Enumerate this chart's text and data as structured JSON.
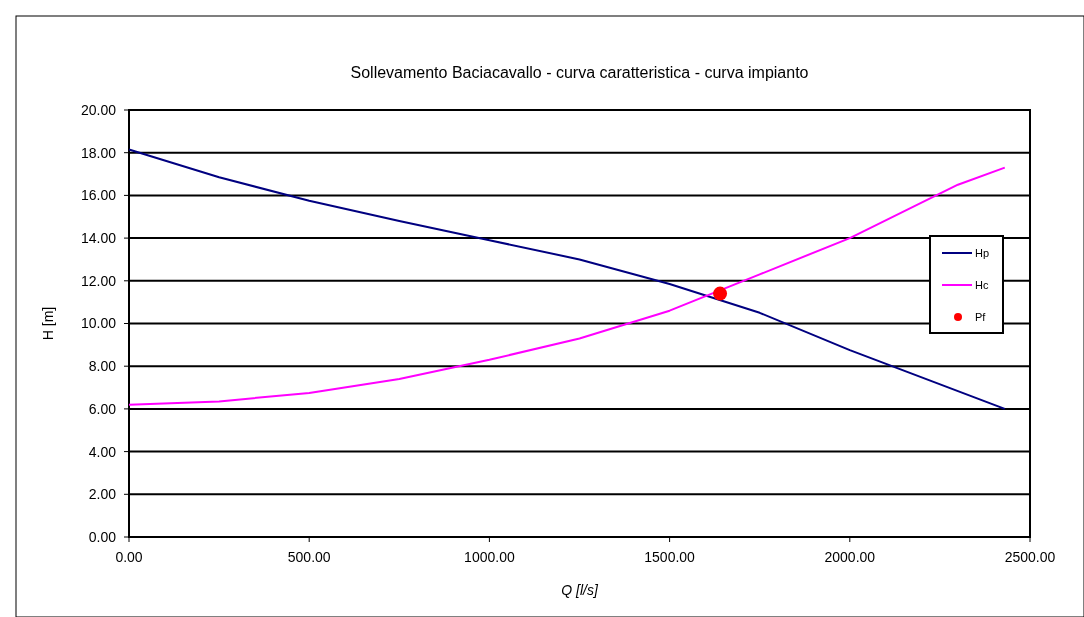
{
  "chart_data": {
    "type": "line",
    "title": "Sollevamento Baciacavallo - curva caratteristica - curva impianto",
    "xlabel": "Q [l/s]",
    "ylabel": "H [m]",
    "xlim": [
      0,
      2500
    ],
    "ylim": [
      0,
      20
    ],
    "xticks": [
      {
        "value": 0,
        "label": "0.00"
      },
      {
        "value": 500,
        "label": "500.00"
      },
      {
        "value": 1000,
        "label": "1000.00"
      },
      {
        "value": 1500,
        "label": "1500.00"
      },
      {
        "value": 2000,
        "label": "2000.00"
      },
      {
        "value": 2500,
        "label": "2500.00"
      }
    ],
    "yticks": [
      {
        "value": 0,
        "label": "0.00"
      },
      {
        "value": 2,
        "label": "2.00"
      },
      {
        "value": 4,
        "label": "4.00"
      },
      {
        "value": 6,
        "label": "6.00"
      },
      {
        "value": 8,
        "label": "8.00"
      },
      {
        "value": 10,
        "label": "10.00"
      },
      {
        "value": 12,
        "label": "12.00"
      },
      {
        "value": 14,
        "label": "14.00"
      },
      {
        "value": 16,
        "label": "16.00"
      },
      {
        "value": 18,
        "label": "18.00"
      },
      {
        "value": 20,
        "label": "20.00"
      }
    ],
    "grid": "y",
    "legend": "right",
    "series": [
      {
        "name": "Hp",
        "color": "#000080",
        "x": [
          0,
          250,
          500,
          750,
          1000,
          1250,
          1500,
          1750,
          2000,
          2430
        ],
        "values": [
          18.15,
          16.85,
          15.75,
          14.8,
          13.9,
          13.0,
          11.85,
          10.5,
          8.75,
          6.0
        ]
      },
      {
        "name": "Hc",
        "color": "#ff00ff",
        "x": [
          0,
          250,
          500,
          750,
          1000,
          1250,
          1500,
          1750,
          2000,
          2300,
          2430
        ],
        "values": [
          6.2,
          6.35,
          6.75,
          7.4,
          8.3,
          9.3,
          10.6,
          12.3,
          14.0,
          16.5,
          17.3
        ]
      },
      {
        "name": "Pf",
        "type": "scatter",
        "color": "#ff0000",
        "marker": "circle",
        "x": [
          1640
        ],
        "values": [
          11.4
        ]
      }
    ]
  }
}
